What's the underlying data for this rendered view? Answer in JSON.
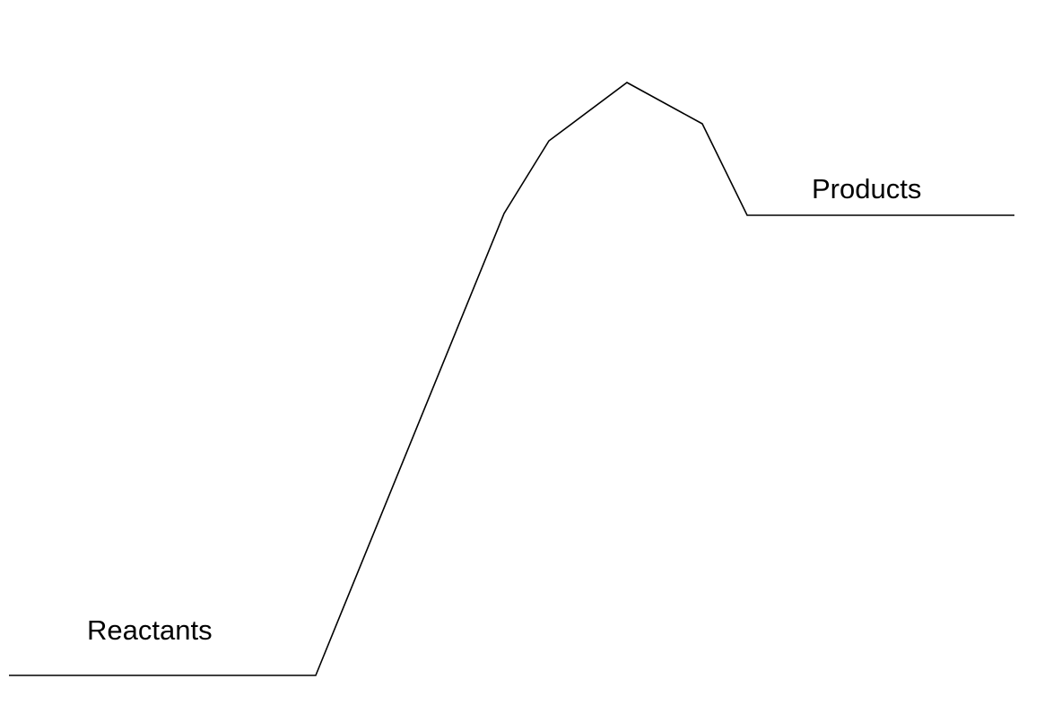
{
  "diagram": {
    "labels": {
      "reactants": "Reactants",
      "products": "Products"
    },
    "line_color": "#000000",
    "background_color": "#ffffff"
  }
}
